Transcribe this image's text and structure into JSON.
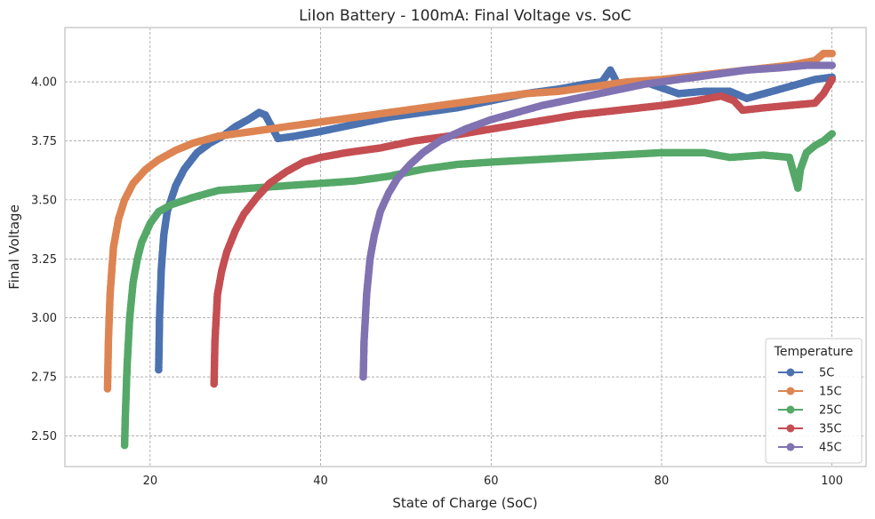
{
  "chart_data": {
    "type": "line",
    "title": "LiIon Battery - 100mA: Final Voltage vs. SoC",
    "xlabel": "State of Charge (SoC)",
    "ylabel": "Final Voltage",
    "xlim": [
      10,
      104
    ],
    "ylim": [
      2.37,
      4.23
    ],
    "xticks": [
      20,
      40,
      60,
      80,
      100
    ],
    "yticks": [
      2.5,
      2.75,
      3.0,
      3.25,
      3.5,
      3.75,
      4.0
    ],
    "xtick_labels": [
      "20",
      "40",
      "60",
      "80",
      "100"
    ],
    "ytick_labels": [
      "2.50",
      "2.75",
      "3.00",
      "3.25",
      "3.50",
      "3.75",
      "4.00"
    ],
    "grid": true,
    "marker": "circle",
    "legend": {
      "title": "Temperature",
      "position": "bottom-right"
    },
    "series": [
      {
        "name": "5C",
        "color": "#4c72b0",
        "points": [
          [
            21.0,
            2.78
          ],
          [
            21.1,
            3.0
          ],
          [
            21.3,
            3.2
          ],
          [
            21.6,
            3.35
          ],
          [
            22.0,
            3.45
          ],
          [
            23.0,
            3.56
          ],
          [
            24.0,
            3.63
          ],
          [
            25.5,
            3.7
          ],
          [
            27.0,
            3.74
          ],
          [
            28.5,
            3.77
          ],
          [
            30.0,
            3.81
          ],
          [
            31.5,
            3.84
          ],
          [
            32.8,
            3.87
          ],
          [
            33.5,
            3.86
          ],
          [
            35.0,
            3.76
          ],
          [
            37.0,
            3.77
          ],
          [
            40.0,
            3.79
          ],
          [
            44.0,
            3.82
          ],
          [
            48.0,
            3.85
          ],
          [
            52.0,
            3.87
          ],
          [
            56.0,
            3.89
          ],
          [
            60.0,
            3.92
          ],
          [
            64.0,
            3.95
          ],
          [
            68.0,
            3.97
          ],
          [
            71.0,
            3.99
          ],
          [
            73.0,
            4.0
          ],
          [
            74.0,
            4.05
          ],
          [
            75.0,
            3.98
          ],
          [
            78.0,
            4.0
          ],
          [
            82.0,
            3.95
          ],
          [
            85.0,
            3.96
          ],
          [
            88.0,
            3.96
          ],
          [
            90.0,
            3.93
          ],
          [
            92.0,
            3.95
          ],
          [
            95.0,
            3.98
          ],
          [
            98.0,
            4.01
          ],
          [
            100.0,
            4.02
          ]
        ]
      },
      {
        "name": "15C",
        "color": "#dd8452",
        "points": [
          [
            15.0,
            2.7
          ],
          [
            15.1,
            2.9
          ],
          [
            15.3,
            3.1
          ],
          [
            15.7,
            3.3
          ],
          [
            16.3,
            3.42
          ],
          [
            17.0,
            3.5
          ],
          [
            18.0,
            3.57
          ],
          [
            19.5,
            3.63
          ],
          [
            21.0,
            3.67
          ],
          [
            23.0,
            3.71
          ],
          [
            25.0,
            3.74
          ],
          [
            28.0,
            3.77
          ],
          [
            32.0,
            3.79
          ],
          [
            36.0,
            3.81
          ],
          [
            40.0,
            3.83
          ],
          [
            44.0,
            3.85
          ],
          [
            48.0,
            3.87
          ],
          [
            52.0,
            3.89
          ],
          [
            56.0,
            3.91
          ],
          [
            60.0,
            3.93
          ],
          [
            64.0,
            3.95
          ],
          [
            68.0,
            3.96
          ],
          [
            72.0,
            3.98
          ],
          [
            76.0,
            4.0
          ],
          [
            80.0,
            4.01
          ],
          [
            85.0,
            4.03
          ],
          [
            90.0,
            4.05
          ],
          [
            95.0,
            4.07
          ],
          [
            98.0,
            4.09
          ],
          [
            99.0,
            4.12
          ],
          [
            100.0,
            4.12
          ]
        ]
      },
      {
        "name": "25C",
        "color": "#55a868",
        "points": [
          [
            17.0,
            2.46
          ],
          [
            17.1,
            2.6
          ],
          [
            17.3,
            2.8
          ],
          [
            17.6,
            3.0
          ],
          [
            18.0,
            3.15
          ],
          [
            18.5,
            3.25
          ],
          [
            19.0,
            3.32
          ],
          [
            20.0,
            3.4
          ],
          [
            21.0,
            3.45
          ],
          [
            22.5,
            3.48
          ],
          [
            25.0,
            3.51
          ],
          [
            28.0,
            3.54
          ],
          [
            32.0,
            3.55
          ],
          [
            36.0,
            3.56
          ],
          [
            40.0,
            3.57
          ],
          [
            44.0,
            3.58
          ],
          [
            48.0,
            3.6
          ],
          [
            52.0,
            3.63
          ],
          [
            56.0,
            3.65
          ],
          [
            60.0,
            3.66
          ],
          [
            65.0,
            3.67
          ],
          [
            70.0,
            3.68
          ],
          [
            75.0,
            3.69
          ],
          [
            80.0,
            3.7
          ],
          [
            85.0,
            3.7
          ],
          [
            88.0,
            3.68
          ],
          [
            92.0,
            3.69
          ],
          [
            95.0,
            3.68
          ],
          [
            96.0,
            3.55
          ],
          [
            96.3,
            3.63
          ],
          [
            97.0,
            3.7
          ],
          [
            98.0,
            3.73
          ],
          [
            99.0,
            3.75
          ],
          [
            100.0,
            3.78
          ]
        ]
      },
      {
        "name": "35C",
        "color": "#c44e52",
        "points": [
          [
            27.5,
            2.72
          ],
          [
            27.6,
            2.9
          ],
          [
            27.9,
            3.1
          ],
          [
            28.4,
            3.2
          ],
          [
            29.0,
            3.28
          ],
          [
            30.0,
            3.37
          ],
          [
            31.0,
            3.44
          ],
          [
            32.5,
            3.51
          ],
          [
            34.0,
            3.57
          ],
          [
            36.0,
            3.62
          ],
          [
            38.0,
            3.66
          ],
          [
            40.0,
            3.68
          ],
          [
            43.0,
            3.7
          ],
          [
            47.0,
            3.72
          ],
          [
            51.0,
            3.75
          ],
          [
            55.0,
            3.77
          ],
          [
            60.0,
            3.8
          ],
          [
            65.0,
            3.83
          ],
          [
            70.0,
            3.86
          ],
          [
            75.0,
            3.88
          ],
          [
            80.0,
            3.9
          ],
          [
            84.0,
            3.92
          ],
          [
            87.0,
            3.94
          ],
          [
            88.5,
            3.92
          ],
          [
            89.5,
            3.88
          ],
          [
            92.0,
            3.89
          ],
          [
            95.0,
            3.9
          ],
          [
            98.0,
            3.91
          ],
          [
            99.0,
            3.95
          ],
          [
            100.0,
            4.01
          ]
        ]
      },
      {
        "name": "45C",
        "color": "#8172b2",
        "points": [
          [
            45.0,
            2.75
          ],
          [
            45.1,
            2.9
          ],
          [
            45.4,
            3.1
          ],
          [
            45.8,
            3.25
          ],
          [
            46.3,
            3.35
          ],
          [
            47.0,
            3.45
          ],
          [
            48.0,
            3.53
          ],
          [
            49.0,
            3.59
          ],
          [
            50.5,
            3.65
          ],
          [
            52.0,
            3.7
          ],
          [
            54.0,
            3.75
          ],
          [
            57.0,
            3.8
          ],
          [
            60.0,
            3.84
          ],
          [
            63.0,
            3.87
          ],
          [
            66.0,
            3.9
          ],
          [
            70.0,
            3.93
          ],
          [
            74.0,
            3.96
          ],
          [
            78.0,
            3.99
          ],
          [
            82.0,
            4.01
          ],
          [
            86.0,
            4.03
          ],
          [
            90.0,
            4.05
          ],
          [
            94.0,
            4.06
          ],
          [
            97.0,
            4.07
          ],
          [
            100.0,
            4.07
          ]
        ]
      }
    ]
  }
}
